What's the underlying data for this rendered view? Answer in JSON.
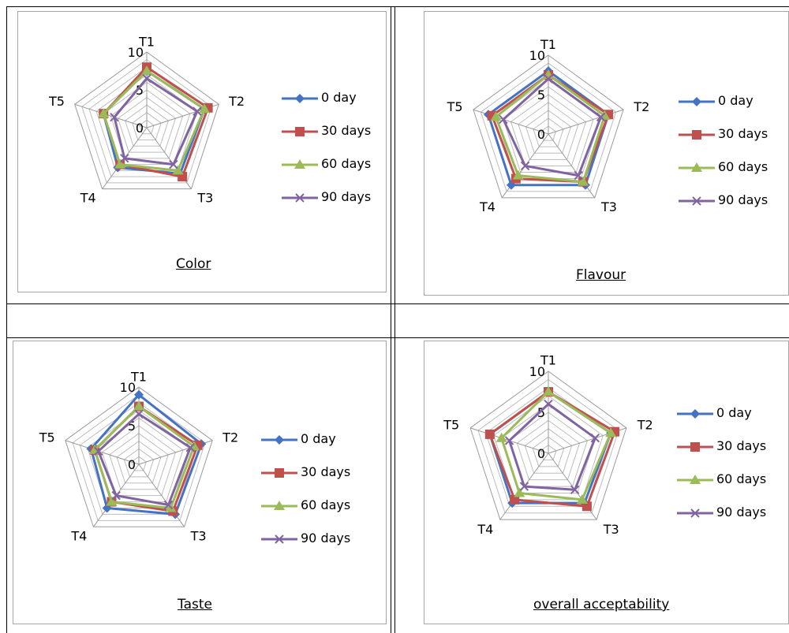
{
  "series_styles": [
    {
      "color": "#4472c4",
      "marker": "diamond"
    },
    {
      "color": "#c0504d",
      "marker": "square"
    },
    {
      "color": "#9bbb59",
      "marker": "triangle"
    },
    {
      "color": "#8064a2",
      "marker": "x"
    }
  ],
  "chart_data": [
    {
      "type": "radar",
      "title": "Color",
      "categories": [
        "T1",
        "T2",
        "T3",
        "T4",
        "T5"
      ],
      "rlim": [
        0,
        10
      ],
      "tick_labels": [
        "10",
        "5",
        "0"
      ],
      "series": [
        {
          "name": "0 day",
          "values": [
            7.5,
            8.0,
            7.5,
            6.5,
            6.0
          ]
        },
        {
          "name": "30 days",
          "values": [
            8.0,
            8.5,
            8.0,
            6.0,
            6.0
          ]
        },
        {
          "name": "60 days",
          "values": [
            7.5,
            8.0,
            7.0,
            6.0,
            6.0
          ]
        },
        {
          "name": "90 days",
          "values": [
            6.5,
            7.0,
            6.0,
            5.0,
            4.5
          ]
        }
      ]
    },
    {
      "type": "radar",
      "title": "Flavour",
      "categories": [
        "T1",
        "T2",
        "T3",
        "T4",
        "T5"
      ],
      "rlim": [
        0,
        10
      ],
      "tick_labels": [
        "10",
        "5",
        "0"
      ],
      "series": [
        {
          "name": "0 day",
          "values": [
            8.0,
            8.0,
            8.0,
            8.0,
            8.0
          ]
        },
        {
          "name": "30 days",
          "values": [
            7.5,
            8.0,
            7.5,
            7.0,
            7.5
          ]
        },
        {
          "name": "60 days",
          "values": [
            7.5,
            7.5,
            7.5,
            6.5,
            7.0
          ]
        },
        {
          "name": "90 days",
          "values": [
            7.0,
            7.0,
            6.5,
            5.0,
            6.0
          ]
        }
      ]
    },
    {
      "type": "radar",
      "title": "Taste",
      "categories": [
        "T1",
        "T2",
        "T3",
        "T4",
        "T5"
      ],
      "rlim": [
        0,
        10
      ],
      "tick_labels": [
        "10",
        "5",
        "0"
      ],
      "series": [
        {
          "name": "0 day",
          "values": [
            9.0,
            8.5,
            8.0,
            7.0,
            6.5
          ]
        },
        {
          "name": "30 days",
          "values": [
            7.5,
            8.0,
            7.5,
            6.0,
            6.0
          ]
        },
        {
          "name": "60 days",
          "values": [
            7.5,
            7.5,
            7.0,
            6.0,
            6.0
          ]
        },
        {
          "name": "90 days",
          "values": [
            6.5,
            7.0,
            6.5,
            5.0,
            5.5
          ]
        }
      ]
    },
    {
      "type": "radar",
      "title": "overall acceptability",
      "categories": [
        "T1",
        "T2",
        "T3",
        "T4",
        "T5"
      ],
      "rlim": [
        0,
        10
      ],
      "tick_labels": [
        "10",
        "5",
        "0"
      ],
      "series": [
        {
          "name": "0 day",
          "values": [
            7.5,
            8.0,
            7.5,
            7.5,
            7.5
          ]
        },
        {
          "name": "30 days",
          "values": [
            7.5,
            8.5,
            8.0,
            7.0,
            7.5
          ]
        },
        {
          "name": "60 days",
          "values": [
            7.5,
            8.0,
            7.0,
            6.0,
            6.0
          ]
        },
        {
          "name": "90 days",
          "values": [
            6.0,
            6.0,
            5.5,
            5.0,
            5.0
          ]
        }
      ]
    }
  ]
}
